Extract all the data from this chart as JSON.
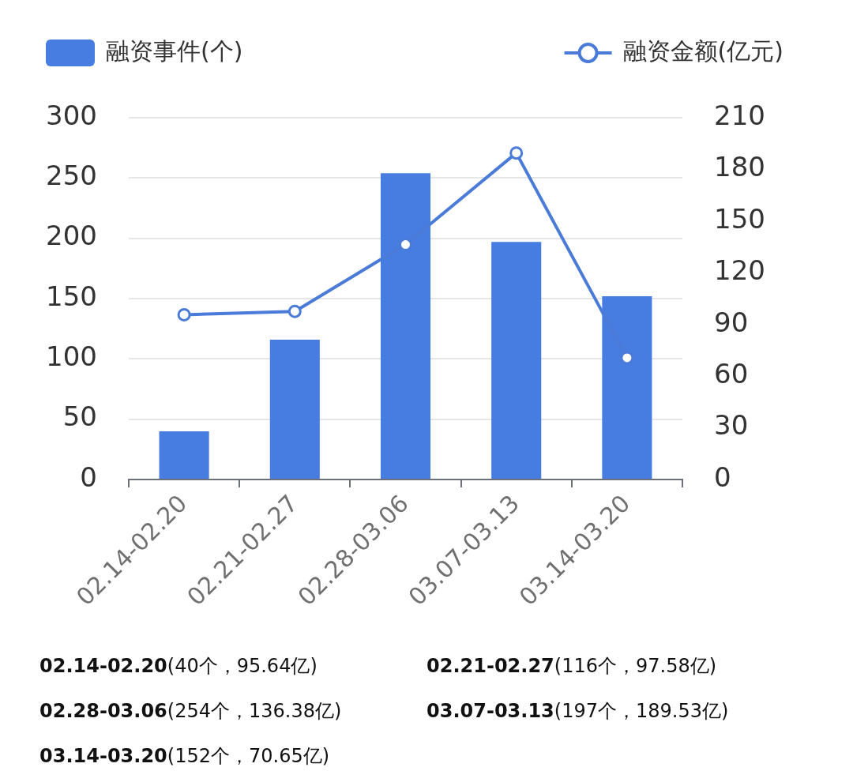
{
  "chart_data": {
    "type": "bar",
    "categories": [
      "02.14-02.20",
      "02.21-02.27",
      "02.28-03.06",
      "03.07-03.13",
      "03.14-03.20"
    ],
    "series": [
      {
        "name": "融资事件(个)",
        "color": "#477ce0",
        "values": [
          40,
          116,
          254,
          197,
          152
        ]
      },
      {
        "name": "融资金额(亿元)",
        "type": "line",
        "axis": "y2",
        "color": "#4a7bd8",
        "values": [
          95.64,
          97.58,
          136.38,
          189.53,
          70.65
        ]
      }
    ],
    "ylim": [
      0,
      300
    ],
    "yticks": [
      0,
      50,
      100,
      150,
      200,
      250,
      300
    ],
    "y2lim": [
      0,
      210
    ],
    "y2ticks": [
      0,
      30,
      60,
      90,
      120,
      150,
      180,
      210
    ],
    "annotations": [
      "(40个，95.64亿)",
      "(116个，97.58亿)",
      "(254个，136.38亿)",
      "(197个，189.53亿)",
      "(152个，70.65亿)"
    ],
    "grid": "y",
    "legend": "top",
    "marker": "circle",
    "line_style": "solid"
  }
}
